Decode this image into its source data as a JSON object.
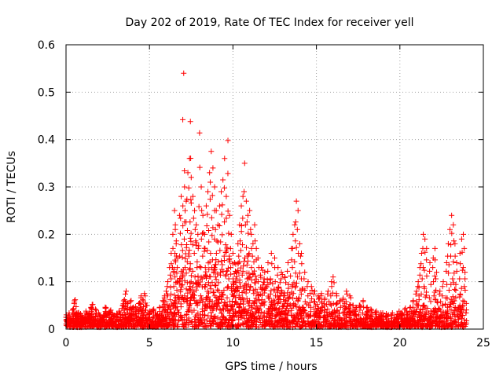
{
  "chart_data": {
    "type": "scatter",
    "title": "Day 202 of 2019, Rate Of TEC Index for receiver yell",
    "xlabel": "GPS time / hours",
    "ylabel": "ROTI / TECUs",
    "xlim": [
      0,
      25
    ],
    "ylim": [
      0,
      0.6
    ],
    "xticks": [
      0,
      5,
      10,
      15,
      20,
      25
    ],
    "yticks": [
      0,
      0.1,
      0.2,
      0.3,
      0.4,
      0.5,
      0.6
    ],
    "xtick_labels": [
      "0",
      "5",
      "10",
      "15",
      "20",
      "25"
    ],
    "ytick_labels": [
      "0",
      "0.1",
      "0.2",
      "0.3",
      "0.4",
      "0.5",
      "0.6"
    ],
    "grid": true,
    "marker": "+",
    "color": "#ff0000",
    "points": [
      [
        0.0,
        0.025
      ],
      [
        0.1,
        0.018
      ],
      [
        0.2,
        0.03
      ],
      [
        0.3,
        0.015
      ],
      [
        0.4,
        0.04
      ],
      [
        0.5,
        0.055
      ],
      [
        0.55,
        0.062
      ],
      [
        0.6,
        0.03
      ],
      [
        0.7,
        0.02
      ],
      [
        0.8,
        0.012
      ],
      [
        0.9,
        0.028
      ],
      [
        1.0,
        0.02
      ],
      [
        1.2,
        0.035
      ],
      [
        1.4,
        0.03
      ],
      [
        1.5,
        0.045
      ],
      [
        1.6,
        0.052
      ],
      [
        1.8,
        0.04
      ],
      [
        2.0,
        0.03
      ],
      [
        2.2,
        0.025
      ],
      [
        2.4,
        0.045
      ],
      [
        2.6,
        0.035
      ],
      [
        2.8,
        0.03
      ],
      [
        3.0,
        0.028
      ],
      [
        3.2,
        0.035
      ],
      [
        3.4,
        0.05
      ],
      [
        3.5,
        0.062
      ],
      [
        3.6,
        0.08
      ],
      [
        3.7,
        0.055
      ],
      [
        3.8,
        0.04
      ],
      [
        3.9,
        0.06
      ],
      [
        4.0,
        0.045
      ],
      [
        4.2,
        0.04
      ],
      [
        4.4,
        0.055
      ],
      [
        4.5,
        0.07
      ],
      [
        4.6,
        0.062
      ],
      [
        4.7,
        0.075
      ],
      [
        4.8,
        0.05
      ],
      [
        5.0,
        0.035
      ],
      [
        5.2,
        0.04
      ],
      [
        5.4,
        0.03
      ],
      [
        5.6,
        0.045
      ],
      [
        5.8,
        0.06
      ],
      [
        5.9,
        0.07
      ],
      [
        6.0,
        0.08
      ],
      [
        6.1,
        0.1
      ],
      [
        6.2,
        0.13
      ],
      [
        6.3,
        0.16
      ],
      [
        6.4,
        0.2
      ],
      [
        6.5,
        0.25
      ],
      [
        6.55,
        0.22
      ],
      [
        6.6,
        0.18
      ],
      [
        6.7,
        0.15
      ],
      [
        6.8,
        0.24
      ],
      [
        6.9,
        0.28
      ],
      [
        7.0,
        0.26
      ],
      [
        7.05,
        0.54
      ],
      [
        7.1,
        0.3
      ],
      [
        7.2,
        0.27
      ],
      [
        7.3,
        0.33
      ],
      [
        7.4,
        0.36
      ],
      [
        7.45,
        0.438
      ],
      [
        7.5,
        0.32
      ],
      [
        7.6,
        0.28
      ],
      [
        7.7,
        0.25
      ],
      [
        7.8,
        0.22
      ],
      [
        7.9,
        0.2
      ],
      [
        8.0,
        0.414
      ],
      [
        8.1,
        0.3
      ],
      [
        8.2,
        0.24
      ],
      [
        8.3,
        0.2
      ],
      [
        8.4,
        0.26
      ],
      [
        8.5,
        0.29
      ],
      [
        8.6,
        0.33
      ],
      [
        8.7,
        0.375
      ],
      [
        8.8,
        0.34
      ],
      [
        8.9,
        0.3
      ],
      [
        9.0,
        0.25
      ],
      [
        9.1,
        0.22
      ],
      [
        9.2,
        0.26
      ],
      [
        9.3,
        0.29
      ],
      [
        9.4,
        0.315
      ],
      [
        9.5,
        0.36
      ],
      [
        9.6,
        0.28
      ],
      [
        9.7,
        0.398
      ],
      [
        9.8,
        0.24
      ],
      [
        9.9,
        0.2
      ],
      [
        10.0,
        0.16
      ],
      [
        10.1,
        0.14
      ],
      [
        10.2,
        0.12
      ],
      [
        10.3,
        0.18
      ],
      [
        10.4,
        0.22
      ],
      [
        10.5,
        0.26
      ],
      [
        10.6,
        0.28
      ],
      [
        10.7,
        0.35
      ],
      [
        10.8,
        0.27
      ],
      [
        10.9,
        0.24
      ],
      [
        11.0,
        0.25
      ],
      [
        11.1,
        0.2
      ],
      [
        11.2,
        0.18
      ],
      [
        11.3,
        0.22
      ],
      [
        11.4,
        0.17
      ],
      [
        11.5,
        0.15
      ],
      [
        11.7,
        0.13
      ],
      [
        11.9,
        0.12
      ],
      [
        12.1,
        0.14
      ],
      [
        12.3,
        0.16
      ],
      [
        12.5,
        0.15
      ],
      [
        12.7,
        0.13
      ],
      [
        12.9,
        0.12
      ],
      [
        13.1,
        0.11
      ],
      [
        13.3,
        0.14
      ],
      [
        13.5,
        0.17
      ],
      [
        13.6,
        0.2
      ],
      [
        13.7,
        0.22
      ],
      [
        13.8,
        0.27
      ],
      [
        13.9,
        0.25
      ],
      [
        14.0,
        0.18
      ],
      [
        14.1,
        0.16
      ],
      [
        14.3,
        0.12
      ],
      [
        14.5,
        0.1
      ],
      [
        14.7,
        0.09
      ],
      [
        14.9,
        0.08
      ],
      [
        15.1,
        0.07
      ],
      [
        15.3,
        0.075
      ],
      [
        15.5,
        0.065
      ],
      [
        15.7,
        0.08
      ],
      [
        15.9,
        0.1
      ],
      [
        16.0,
        0.11
      ],
      [
        16.2,
        0.075
      ],
      [
        16.4,
        0.06
      ],
      [
        16.6,
        0.065
      ],
      [
        16.8,
        0.08
      ],
      [
        17.0,
        0.07
      ],
      [
        17.2,
        0.05
      ],
      [
        17.4,
        0.045
      ],
      [
        17.6,
        0.05
      ],
      [
        17.8,
        0.06
      ],
      [
        18.0,
        0.045
      ],
      [
        18.3,
        0.04
      ],
      [
        18.6,
        0.035
      ],
      [
        18.9,
        0.03
      ],
      [
        19.2,
        0.028
      ],
      [
        19.5,
        0.03
      ],
      [
        19.8,
        0.025
      ],
      [
        20.1,
        0.03
      ],
      [
        20.4,
        0.035
      ],
      [
        20.6,
        0.045
      ],
      [
        20.8,
        0.06
      ],
      [
        21.0,
        0.08
      ],
      [
        21.1,
        0.1
      ],
      [
        21.2,
        0.13
      ],
      [
        21.3,
        0.16
      ],
      [
        21.4,
        0.2
      ],
      [
        21.5,
        0.19
      ],
      [
        21.6,
        0.17
      ],
      [
        21.8,
        0.14
      ],
      [
        22.0,
        0.15
      ],
      [
        22.1,
        0.17
      ],
      [
        22.2,
        0.12
      ],
      [
        22.4,
        0.08
      ],
      [
        22.6,
        0.1
      ],
      [
        22.8,
        0.14
      ],
      [
        22.9,
        0.18
      ],
      [
        23.0,
        0.21
      ],
      [
        23.1,
        0.24
      ],
      [
        23.2,
        0.22
      ],
      [
        23.3,
        0.18
      ],
      [
        23.4,
        0.14
      ],
      [
        23.6,
        0.16
      ],
      [
        23.7,
        0.19
      ],
      [
        23.8,
        0.2
      ],
      [
        23.9,
        0.12
      ]
    ],
    "envelope": [
      [
        0.0,
        0.018
      ],
      [
        0.5,
        0.03
      ],
      [
        1.0,
        0.018
      ],
      [
        1.5,
        0.03
      ],
      [
        2.0,
        0.022
      ],
      [
        2.5,
        0.028
      ],
      [
        3.0,
        0.022
      ],
      [
        3.5,
        0.038
      ],
      [
        4.0,
        0.03
      ],
      [
        4.5,
        0.04
      ],
      [
        5.0,
        0.025
      ],
      [
        5.5,
        0.03
      ],
      [
        6.0,
        0.045
      ],
      [
        6.5,
        0.09
      ],
      [
        7.0,
        0.12
      ],
      [
        7.5,
        0.13
      ],
      [
        8.0,
        0.12
      ],
      [
        8.5,
        0.14
      ],
      [
        9.0,
        0.13
      ],
      [
        9.5,
        0.14
      ],
      [
        10.0,
        0.1
      ],
      [
        10.5,
        0.13
      ],
      [
        11.0,
        0.12
      ],
      [
        11.5,
        0.09
      ],
      [
        12.0,
        0.08
      ],
      [
        12.5,
        0.085
      ],
      [
        13.0,
        0.07
      ],
      [
        13.5,
        0.075
      ],
      [
        14.0,
        0.07
      ],
      [
        14.5,
        0.05
      ],
      [
        15.0,
        0.045
      ],
      [
        15.5,
        0.04
      ],
      [
        16.0,
        0.045
      ],
      [
        16.5,
        0.035
      ],
      [
        17.0,
        0.035
      ],
      [
        17.5,
        0.03
      ],
      [
        18.0,
        0.028
      ],
      [
        18.5,
        0.025
      ],
      [
        19.0,
        0.02
      ],
      [
        19.5,
        0.02
      ],
      [
        20.0,
        0.022
      ],
      [
        20.5,
        0.028
      ],
      [
        21.0,
        0.035
      ],
      [
        21.5,
        0.05
      ],
      [
        22.0,
        0.045
      ],
      [
        22.5,
        0.04
      ],
      [
        23.0,
        0.06
      ],
      [
        23.5,
        0.055
      ],
      [
        24.0,
        0.04
      ]
    ]
  }
}
